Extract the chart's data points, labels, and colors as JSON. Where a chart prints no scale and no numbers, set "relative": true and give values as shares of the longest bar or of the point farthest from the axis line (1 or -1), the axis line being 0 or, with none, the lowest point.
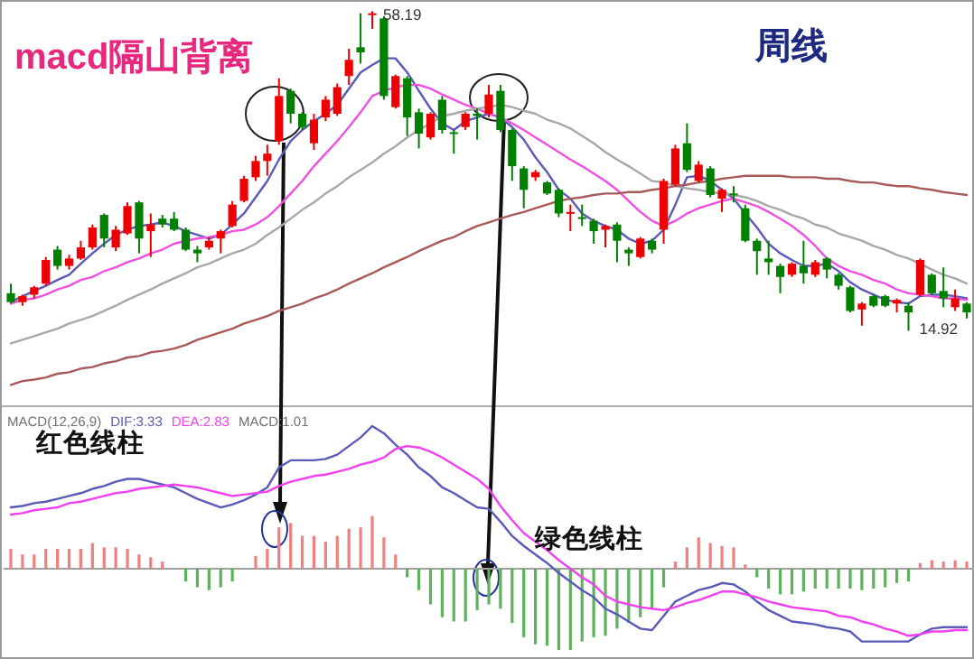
{
  "chart_data": [
    {
      "type": "candlestick",
      "title": "macd隔山背离",
      "subtitle": "周线",
      "categories": [
        null,
        null,
        null,
        null,
        null,
        null,
        null,
        null,
        null,
        null,
        null,
        null,
        null,
        null,
        null,
        null,
        null,
        null,
        null,
        null,
        null,
        null,
        null,
        null,
        null,
        null,
        null,
        null,
        null,
        null,
        null,
        null,
        null,
        null,
        null,
        null,
        null,
        null,
        null,
        null,
        null,
        null,
        null,
        null,
        null,
        null,
        null,
        null,
        null,
        null,
        null,
        null,
        null,
        null,
        null,
        null,
        null,
        null,
        null,
        null,
        null,
        null,
        null,
        null,
        null,
        null,
        null,
        null,
        null,
        null,
        null,
        null,
        null,
        null,
        null,
        null,
        null,
        null,
        null,
        null,
        null,
        null,
        null
      ],
      "ohlc": [
        [
          20.0,
          21.3,
          18.6,
          18.8
        ],
        [
          18.8,
          19.8,
          18.3,
          19.6
        ],
        [
          19.8,
          21.0,
          19.3,
          20.8
        ],
        [
          21.3,
          24.9,
          21.0,
          24.5
        ],
        [
          25.9,
          26.4,
          23.2,
          23.7
        ],
        [
          23.7,
          25.2,
          23.2,
          24.7
        ],
        [
          24.7,
          27.1,
          24.5,
          26.2
        ],
        [
          26.2,
          29.3,
          25.9,
          28.9
        ],
        [
          30.6,
          30.8,
          26.2,
          27.4
        ],
        [
          26.2,
          29.1,
          25.7,
          28.6
        ],
        [
          28.1,
          32.3,
          27.9,
          31.8
        ],
        [
          32.3,
          32.5,
          25.4,
          27.4
        ],
        [
          28.4,
          30.8,
          24.9,
          29.3
        ],
        [
          30.1,
          30.6,
          28.9,
          29.3
        ],
        [
          30.1,
          31.0,
          28.4,
          28.6
        ],
        [
          28.6,
          28.9,
          25.7,
          25.9
        ],
        [
          25.9,
          26.4,
          24.2,
          25.4
        ],
        [
          26.2,
          27.6,
          25.9,
          27.1
        ],
        [
          27.4,
          28.6,
          25.4,
          28.4
        ],
        [
          29.1,
          32.5,
          28.9,
          32.0
        ],
        [
          32.5,
          35.9,
          32.3,
          35.5
        ],
        [
          35.7,
          38.6,
          35.2,
          37.9
        ],
        [
          37.9,
          40.1,
          35.9,
          38.9
        ],
        [
          40.6,
          49.1,
          40.1,
          46.7
        ],
        [
          47.4,
          47.7,
          43.0,
          44.3
        ],
        [
          44.3,
          44.5,
          42.1,
          42.5
        ],
        [
          40.3,
          44.3,
          39.4,
          43.5
        ],
        [
          43.8,
          46.7,
          43.3,
          46.2
        ],
        [
          44.3,
          48.4,
          44.0,
          47.9
        ],
        [
          49.4,
          53.1,
          48.2,
          51.6
        ],
        [
          53.3,
          57.9,
          51.1,
          52.6
        ],
        [
          57.7,
          58.19,
          55.8,
          57.9
        ],
        [
          57.2,
          57.5,
          46.2,
          46.7
        ],
        [
          45.2,
          49.6,
          45.0,
          49.4
        ],
        [
          49.1,
          49.4,
          41.3,
          43.8
        ],
        [
          44.5,
          45.0,
          39.6,
          41.6
        ],
        [
          41.1,
          44.5,
          40.8,
          44.3
        ],
        [
          46.2,
          46.7,
          41.6,
          42.1
        ],
        [
          41.8,
          42.1,
          38.9,
          41.6
        ],
        [
          42.5,
          44.5,
          42.1,
          44.3
        ],
        [
          44.3,
          45.0,
          40.8,
          44.0
        ],
        [
          44.3,
          48.2,
          43.8,
          46.9
        ],
        [
          47.4,
          48.2,
          41.8,
          42.1
        ],
        [
          42.1,
          42.3,
          35.2,
          37.2
        ],
        [
          36.9,
          37.2,
          31.5,
          34.0
        ],
        [
          35.7,
          36.7,
          35.2,
          36.4
        ],
        [
          35.0,
          35.2,
          33.3,
          33.5
        ],
        [
          34.0,
          34.2,
          30.3,
          30.8
        ],
        [
          30.8,
          32.0,
          28.4,
          31.0
        ],
        [
          30.3,
          32.0,
          29.1,
          30.1
        ],
        [
          29.8,
          30.1,
          26.7,
          28.4
        ],
        [
          28.6,
          29.3,
          26.2,
          29.1
        ],
        [
          29.3,
          29.6,
          24.2,
          27.1
        ],
        [
          25.9,
          26.2,
          23.7,
          25.4
        ],
        [
          24.9,
          27.6,
          24.7,
          27.4
        ],
        [
          27.1,
          27.4,
          25.4,
          25.9
        ],
        [
          28.6,
          35.5,
          26.7,
          35.2
        ],
        [
          34.7,
          40.1,
          34.5,
          39.6
        ],
        [
          40.3,
          43.0,
          36.4,
          36.7
        ],
        [
          35.2,
          37.9,
          35.0,
          37.4
        ],
        [
          36.9,
          37.2,
          33.0,
          33.3
        ],
        [
          32.8,
          34.2,
          31.0,
          34.0
        ],
        [
          33.5,
          34.5,
          32.3,
          33.3
        ],
        [
          31.5,
          32.0,
          26.9,
          27.1
        ],
        [
          27.1,
          27.4,
          22.5,
          25.7
        ],
        [
          24.7,
          27.1,
          22.5,
          24.2
        ],
        [
          23.7,
          24.0,
          20.0,
          22.2
        ],
        [
          22.5,
          24.2,
          22.2,
          24.0
        ],
        [
          23.7,
          27.1,
          21.3,
          22.7
        ],
        [
          22.5,
          24.5,
          22.2,
          24.2
        ],
        [
          24.7,
          24.9,
          22.0,
          23.2
        ],
        [
          22.5,
          22.7,
          20.5,
          21.0
        ],
        [
          20.8,
          21.0,
          17.4,
          17.6
        ],
        [
          17.8,
          18.8,
          15.6,
          18.6
        ],
        [
          19.6,
          19.8,
          18.1,
          18.3
        ],
        [
          19.6,
          19.8,
          18.1,
          18.3
        ],
        [
          18.6,
          19.3,
          17.4,
          19.1
        ],
        [
          18.3,
          18.8,
          14.92,
          17.4
        ],
        [
          19.8,
          24.7,
          19.6,
          24.5
        ],
        [
          22.5,
          22.7,
          19.8,
          20.0
        ],
        [
          20.3,
          23.5,
          18.1,
          19.3
        ],
        [
          18.1,
          20.5,
          17.6,
          19.3
        ],
        [
          18.6,
          18.8,
          16.6,
          17.4
        ]
      ],
      "colors": [
        "#008000",
        "#ee0000",
        "#ee0000",
        "#ee0000",
        "#008000",
        "#ee0000",
        "#ee0000",
        "#ee0000",
        "#008000",
        "#ee0000",
        "#ee0000",
        "#008000",
        "#ee0000",
        "#008000",
        "#008000",
        "#008000",
        "#008000",
        "#ee0000",
        "#ee0000",
        "#ee0000",
        "#ee0000",
        "#ee0000",
        "#ee0000",
        "#ee0000",
        "#008000",
        "#008000",
        "#ee0000",
        "#ee0000",
        "#ee0000",
        "#ee0000",
        "#008000",
        "#ee0000",
        "#008000",
        "#ee0000",
        "#008000",
        "#008000",
        "#ee0000",
        "#008000",
        "#008000",
        "#ee0000",
        "#008000",
        "#ee0000",
        "#008000",
        "#008000",
        "#008000",
        "#ee0000",
        "#008000",
        "#008000",
        "#ee0000",
        "#008000",
        "#008000",
        "#ee0000",
        "#008000",
        "#008000",
        "#ee0000",
        "#008000",
        "#ee0000",
        "#ee0000",
        "#008000",
        "#ee0000",
        "#008000",
        "#ee0000",
        "#008000",
        "#008000",
        "#008000",
        "#008000",
        "#008000",
        "#ee0000",
        "#008000",
        "#ee0000",
        "#008000",
        "#008000",
        "#008000",
        "#ee0000",
        "#008000",
        "#008000",
        "#ee0000",
        "#008000",
        "#ee0000",
        "#008000",
        "#008000",
        "#ee0000",
        "#008000"
      ],
      "ylim": [
        4.7,
        59.7
      ],
      "series": [
        {
          "type": "line",
          "color": "#5a5ab8",
          "values": [
            18.8,
            19.6,
            20.3,
            21.0,
            21.8,
            22.5,
            24.0,
            25.4,
            26.7,
            27.9,
            28.6,
            29.1,
            29.3,
            29.6,
            29.1,
            28.4,
            27.9,
            27.4,
            27.9,
            29.3,
            30.8,
            33.0,
            35.2,
            38.1,
            40.6,
            42.1,
            43.3,
            44.3,
            45.5,
            47.7,
            49.9,
            50.9,
            51.8,
            51.8,
            49.9,
            47.4,
            45.0,
            43.0,
            42.1,
            43.3,
            43.8,
            44.3,
            43.8,
            42.5,
            40.8,
            38.4,
            36.4,
            34.0,
            32.8,
            30.8,
            29.8,
            29.1,
            28.6,
            27.4,
            26.7,
            27.1,
            28.6,
            32.0,
            35.7,
            35.9,
            35.2,
            34.0,
            32.8,
            30.8,
            28.9,
            26.7,
            25.4,
            24.5,
            23.7,
            23.7,
            24.0,
            23.0,
            21.5,
            20.5,
            19.8,
            19.1,
            18.8,
            18.6,
            19.6,
            19.8,
            19.8,
            19.6,
            19.3
          ]
        },
        {
          "type": "line",
          "color": "#f050e0",
          "values": [
            18.6,
            19.1,
            19.3,
            19.8,
            20.5,
            21.0,
            21.8,
            22.2,
            23.0,
            23.5,
            24.2,
            24.7,
            25.4,
            25.9,
            26.7,
            27.1,
            27.4,
            27.6,
            27.9,
            28.4,
            28.6,
            29.3,
            30.3,
            31.8,
            33.5,
            35.2,
            37.2,
            38.9,
            40.6,
            42.5,
            44.5,
            46.7,
            47.4,
            47.9,
            48.2,
            48.2,
            47.7,
            46.9,
            46.2,
            45.5,
            45.0,
            44.3,
            43.8,
            43.0,
            42.1,
            41.1,
            40.1,
            39.1,
            38.1,
            37.2,
            36.2,
            35.2,
            34.0,
            32.5,
            31.0,
            29.8,
            29.1,
            29.8,
            30.8,
            31.5,
            32.0,
            32.5,
            32.8,
            32.3,
            31.8,
            31.0,
            30.1,
            29.1,
            27.9,
            26.4,
            24.7,
            23.7,
            23.0,
            22.5,
            21.8,
            21.3,
            20.5,
            20.0,
            19.8,
            19.6,
            19.3,
            19.3,
            19.1
          ]
        },
        {
          "type": "line",
          "color": "#a8a8a8",
          "values": [
            13.2,
            13.7,
            14.2,
            14.7,
            15.2,
            15.9,
            16.4,
            16.9,
            17.6,
            18.3,
            19.1,
            19.8,
            20.5,
            21.3,
            22.0,
            22.7,
            23.5,
            24.0,
            24.7,
            25.4,
            25.9,
            26.7,
            27.9,
            28.9,
            30.1,
            31.3,
            32.3,
            33.5,
            34.5,
            35.7,
            36.7,
            37.7,
            38.9,
            39.9,
            41.1,
            42.1,
            43.0,
            44.0,
            44.3,
            44.7,
            45.0,
            45.2,
            45.5,
            45.2,
            44.7,
            44.3,
            43.5,
            43.0,
            42.3,
            41.3,
            40.3,
            39.1,
            38.1,
            37.2,
            36.2,
            35.2,
            35.0,
            34.5,
            34.2,
            34.0,
            33.7,
            33.5,
            33.3,
            33.0,
            32.5,
            31.8,
            31.3,
            30.6,
            30.1,
            29.3,
            28.9,
            28.1,
            27.6,
            27.1,
            26.4,
            25.9,
            25.2,
            24.7,
            24.0,
            23.2,
            22.5,
            22.0,
            21.3
          ]
        },
        {
          "type": "line",
          "color": "#a85a5a",
          "values": [
            7.6,
            8.1,
            8.3,
            8.6,
            9.1,
            9.3,
            9.8,
            10.0,
            10.5,
            10.8,
            11.3,
            11.5,
            12.0,
            12.2,
            12.5,
            13.0,
            13.7,
            14.2,
            14.7,
            15.2,
            15.9,
            16.4,
            16.9,
            17.6,
            18.1,
            18.6,
            19.3,
            19.8,
            20.5,
            21.3,
            22.0,
            22.7,
            23.5,
            24.2,
            24.9,
            25.7,
            26.4,
            27.1,
            27.6,
            28.4,
            29.1,
            29.6,
            30.1,
            30.6,
            31.0,
            31.5,
            32.0,
            32.5,
            32.8,
            33.0,
            33.3,
            33.5,
            33.5,
            33.7,
            33.7,
            34.0,
            34.2,
            34.5,
            34.7,
            35.0,
            35.2,
            35.5,
            35.7,
            35.9,
            35.9,
            35.9,
            35.9,
            35.7,
            35.7,
            35.7,
            35.5,
            35.5,
            35.2,
            35.0,
            35.0,
            34.7,
            34.5,
            34.5,
            34.2,
            34.0,
            33.7,
            33.5,
            33.3
          ]
        }
      ],
      "annotations": [
        "58.19",
        "14.92"
      ]
    },
    {
      "type": "bar",
      "title": "MACD(12,26,9)",
      "relative": true,
      "legend": "top left",
      "categories": [
        null,
        null,
        null,
        null,
        null,
        null,
        null,
        null,
        null,
        null,
        null,
        null,
        null,
        null,
        null,
        null,
        null,
        null,
        null,
        null,
        null,
        null,
        null,
        null,
        null,
        null,
        null,
        null,
        null,
        null,
        null,
        null,
        null,
        null,
        null,
        null,
        null,
        null,
        null,
        null,
        null,
        null,
        null,
        null,
        null,
        null,
        null,
        null,
        null,
        null,
        null,
        null,
        null,
        null,
        null,
        null,
        null,
        null,
        null,
        null,
        null,
        null,
        null,
        null,
        null,
        null,
        null,
        null,
        null,
        null,
        null,
        null,
        null,
        null,
        null,
        null,
        null,
        null,
        null,
        null,
        null,
        null,
        null
      ],
      "series": [
        {
          "type": "bar",
          "color": "#f08080",
          "values": [
            0.14,
            0.1,
            0.1,
            0.14,
            0.14,
            0.14,
            0.14,
            0.18,
            0.15,
            0.15,
            0.14,
            0.1,
            0.08,
            0.05,
            null,
            null,
            null,
            null,
            null,
            null,
            null,
            0.09,
            0.14,
            0.29,
            0.32,
            0.23,
            0.23,
            0.19,
            0.23,
            0.28,
            0.29,
            0.37,
            0.22,
            0.1,
            null,
            null,
            null,
            null,
            null,
            null,
            null,
            null,
            null,
            null,
            null,
            null,
            null,
            null,
            null,
            null,
            null,
            null,
            null,
            null,
            null,
            null,
            null,
            0.05,
            0.15,
            0.22,
            0.18,
            0.16,
            0.15,
            0.03,
            null,
            null,
            null,
            null,
            null,
            null,
            null,
            null,
            null,
            null,
            null,
            null,
            null,
            null,
            0.04,
            0.06,
            0.05,
            0.06,
            0.05
          ]
        },
        {
          "type": "bar",
          "color": "#60b060",
          "values": [
            null,
            null,
            null,
            null,
            null,
            null,
            null,
            null,
            null,
            null,
            null,
            null,
            null,
            null,
            null,
            -0.09,
            -0.13,
            -0.15,
            -0.13,
            -0.09,
            null,
            null,
            null,
            null,
            null,
            null,
            null,
            null,
            null,
            null,
            null,
            null,
            null,
            null,
            -0.06,
            -0.15,
            -0.25,
            -0.34,
            -0.37,
            -0.37,
            -0.29,
            -0.25,
            -0.28,
            -0.38,
            -0.48,
            -0.53,
            -0.54,
            -0.57,
            -0.57,
            -0.51,
            -0.48,
            -0.47,
            -0.42,
            -0.38,
            -0.34,
            -0.28,
            -0.13,
            null,
            null,
            null,
            null,
            null,
            null,
            null,
            -0.06,
            -0.14,
            -0.18,
            -0.18,
            -0.16,
            -0.14,
            -0.14,
            -0.14,
            -0.14,
            -0.15,
            -0.14,
            -0.13,
            -0.1,
            -0.09,
            null,
            null,
            null,
            null,
            null
          ]
        },
        {
          "type": "line",
          "name": "DIF:3.33",
          "color": "#5a5ab8",
          "values": [
            0.43,
            0.44,
            0.46,
            0.47,
            0.49,
            0.51,
            0.53,
            0.56,
            0.58,
            0.61,
            0.63,
            0.63,
            0.61,
            0.59,
            0.57,
            0.53,
            0.49,
            0.46,
            0.43,
            0.45,
            0.48,
            0.52,
            0.57,
            0.71,
            0.76,
            0.76,
            0.76,
            0.77,
            0.8,
            0.86,
            0.92,
            1,
            0.95,
            0.87,
            0.8,
            0.71,
            0.65,
            0.57,
            0.53,
            0.48,
            0.43,
            0.42,
            0.33,
            0.23,
            0.16,
            0.1,
            0.04,
            -0.03,
            -0.09,
            -0.15,
            -0.2,
            -0.28,
            -0.32,
            -0.37,
            -0.42,
            -0.43,
            -0.33,
            -0.23,
            -0.19,
            -0.15,
            -0.13,
            -0.1,
            -0.11,
            -0.16,
            -0.23,
            -0.29,
            -0.33,
            -0.37,
            -0.38,
            -0.39,
            -0.41,
            -0.42,
            -0.44,
            -0.51,
            -0.51,
            -0.51,
            -0.51,
            -0.51,
            -0.46,
            -0.42,
            -0.41,
            -0.41,
            -0.41
          ]
        },
        {
          "type": "line",
          "name": "DEA:2.83",
          "color": "#f040f0",
          "values": [
            0.38,
            0.39,
            0.41,
            0.42,
            0.43,
            0.46,
            0.47,
            0.49,
            0.51,
            0.53,
            0.54,
            0.56,
            0.57,
            0.58,
            0.59,
            0.58,
            0.57,
            0.55,
            0.53,
            0.51,
            0.52,
            0.53,
            0.54,
            0.58,
            0.61,
            0.63,
            0.65,
            0.66,
            0.68,
            0.7,
            0.73,
            0.75,
            0.78,
            0.84,
            0.86,
            0.85,
            0.82,
            0.78,
            0.73,
            0.68,
            0.63,
            0.56,
            0.44,
            0.34,
            0.25,
            0.19,
            0.13,
            0.06,
            0,
            -0.06,
            -0.11,
            -0.19,
            -0.23,
            -0.25,
            -0.27,
            -0.28,
            -0.29,
            -0.27,
            -0.24,
            -0.22,
            -0.19,
            -0.16,
            -0.16,
            -0.18,
            -0.2,
            -0.23,
            -0.25,
            -0.27,
            -0.28,
            -0.29,
            -0.3,
            -0.33,
            -0.34,
            -0.37,
            -0.39,
            -0.42,
            -0.44,
            -0.47,
            -0.46,
            -0.44,
            -0.44,
            -0.43,
            -0.43
          ]
        }
      ],
      "annotations": [
        "MACD:1.01",
        "红色线柱",
        "绿色线柱"
      ]
    }
  ]
}
